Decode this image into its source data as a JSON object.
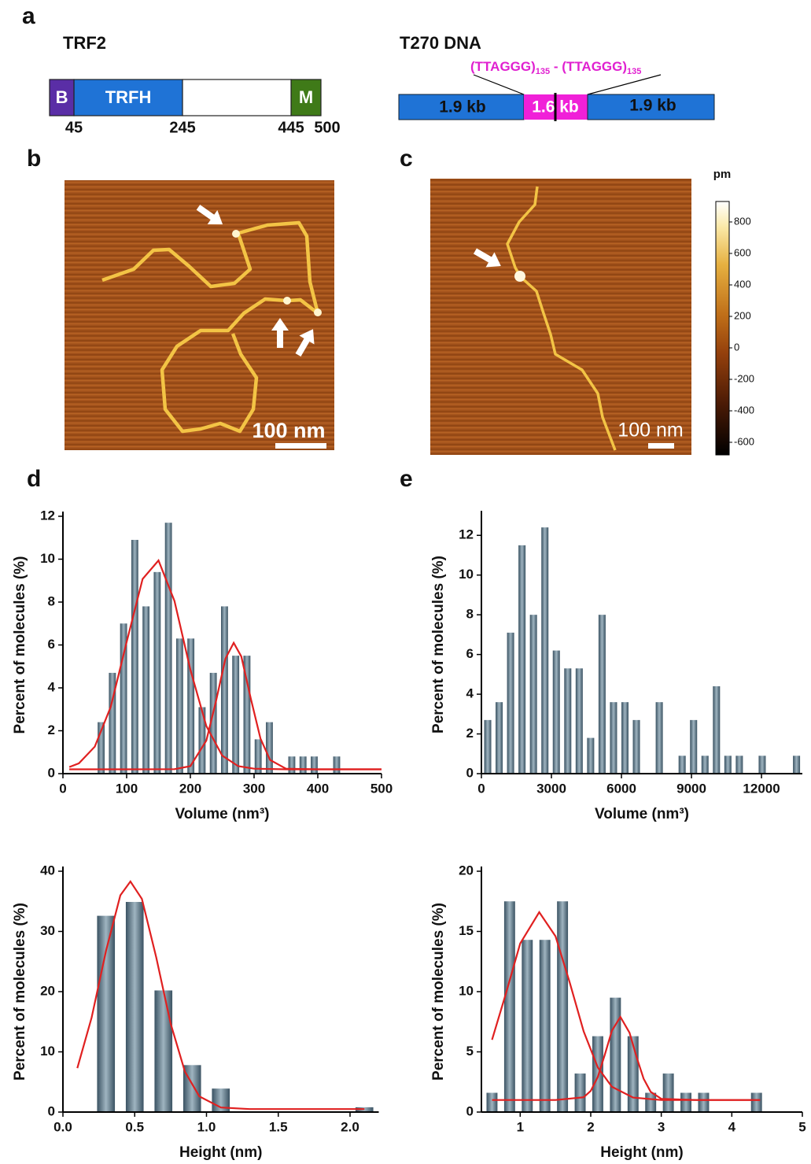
{
  "panel_labels": [
    "a",
    "b",
    "c",
    "d",
    "e"
  ],
  "trf2": {
    "title": "TRF2",
    "domains": [
      "B",
      "TRFH",
      "M"
    ],
    "positions": [
      45,
      245,
      445,
      500
    ],
    "segment_colors": [
      "#5a2ea6",
      "#1f73d6",
      "#ffffff",
      "#3f7a18"
    ]
  },
  "t270": {
    "title": "T270 DNA",
    "repeat_label": [
      "(TTAGGG)",
      "135",
      " - ",
      "(TTAGGG)",
      "135"
    ],
    "segments": [
      "1.9 kb",
      "1.6 kb",
      "1.9 kb"
    ]
  },
  "afm_images": [
    {
      "scale_bar": "100 nm"
    },
    {
      "scale_bar": "100 nm"
    }
  ],
  "colorbar": {
    "unit": "pm",
    "ylim": [
      -680,
      930
    ],
    "yticks": [
      -600,
      -400,
      -200,
      0,
      200,
      400,
      600,
      800
    ]
  },
  "chart_data": [
    {
      "type": "histogram",
      "x_label": "Volume (nm³)",
      "y_label": "Percent of molecules (%)",
      "color": "#3a5262",
      "bins": [
        51.2,
        68.8,
        86.4,
        104,
        121.6,
        139.2,
        156.8,
        174.4,
        192,
        209.6,
        227.2,
        244.8,
        262.4,
        280,
        297.6,
        315.2,
        332.8,
        350.4,
        368,
        385.6,
        403.2,
        420.8,
        438.4
      ],
      "values": [
        2.4,
        4.7,
        7.0,
        10.9,
        7.8,
        9.4,
        11.7,
        6.3,
        6.3,
        3.1,
        4.7,
        7.8,
        5.5,
        5.5,
        1.6,
        2.4,
        0,
        0.8,
        0.8,
        0.8,
        0,
        0.8
      ],
      "xlim": [
        0,
        500
      ],
      "xticks": [
        0,
        100,
        200,
        300,
        400,
        500
      ],
      "ylim": [
        0,
        12
      ],
      "yticks": [
        0,
        2,
        4,
        6,
        8,
        10,
        12
      ],
      "fit_curves": [
        {
          "color": "#e02020",
          "x": [
            10,
            25,
            50,
            75,
            100,
            125,
            150,
            175,
            200,
            225,
            250,
            275,
            300,
            350,
            400,
            450,
            500
          ],
          "values": [
            0.31,
            0.48,
            1.26,
            3.12,
            6.14,
            9.08,
            9.94,
            8.05,
            4.85,
            2.22,
            0.84,
            0.35,
            0.23,
            0.2,
            0.2,
            0.2,
            0.2
          ]
        },
        {
          "color": "#e02020",
          "x": [
            10,
            100,
            175,
            200,
            225,
            240,
            255,
            268,
            280,
            295,
            310,
            325,
            350,
            400,
            500
          ],
          "values": [
            0.2,
            0.2,
            0.21,
            0.35,
            1.54,
            3.35,
            5.36,
            6.1,
            5.46,
            3.49,
            1.64,
            0.64,
            0.23,
            0.2,
            0.2
          ]
        }
      ]
    },
    {
      "type": "histogram",
      "x_label": "Volume (nm³)",
      "y_label": "Percent of molecules (%)",
      "color": "#3a5262",
      "bins": [
        25,
        515,
        1005,
        1495,
        1985,
        2475,
        2965,
        3455,
        3945,
        4435,
        4925,
        5415,
        5905,
        6395,
        6885,
        7375,
        7865,
        8355,
        8845,
        9335,
        9825,
        10315,
        10805,
        11295,
        11785,
        12275,
        12765,
        13255,
        13745
      ],
      "values": [
        2.7,
        3.6,
        7.1,
        11.5,
        8.0,
        12.4,
        6.2,
        5.3,
        5.3,
        1.8,
        8.0,
        3.6,
        3.6,
        2.7,
        0,
        3.6,
        0,
        0.9,
        2.7,
        0.9,
        4.4,
        0.9,
        0.9,
        0,
        0.9,
        0,
        0,
        0.9
      ],
      "xlim": [
        0,
        13750
      ],
      "xticks": [
        0,
        3000,
        6000,
        9000,
        12000
      ],
      "ylim": [
        0,
        13
      ],
      "yticks": [
        0,
        2,
        4,
        6,
        8,
        10,
        12
      ],
      "fit_curves": []
    },
    {
      "type": "histogram",
      "x_label": "Height (nm)",
      "y_label": "Percent of molecules (%)",
      "color": "#3a5262",
      "bins": [
        0.2,
        0.4,
        0.6,
        0.8,
        1.0,
        1.2,
        1.4,
        1.6,
        1.8,
        2.0,
        2.2
      ],
      "values": [
        32.6,
        34.9,
        20.2,
        7.8,
        3.9,
        0,
        0,
        0,
        0,
        0.8
      ],
      "xlim": [
        0,
        2.2
      ],
      "xticks": [
        {
          "value": 0,
          "label": "0.0"
        },
        {
          "value": 0.5,
          "label": "0.5"
        },
        {
          "value": 1,
          "label": "1.0"
        },
        {
          "value": 1.5,
          "label": "1.5"
        },
        {
          "value": 2,
          "label": "2.0"
        }
      ],
      "ylim": [
        0,
        40
      ],
      "yticks": [
        0,
        10,
        20,
        30,
        40
      ],
      "fit_curves": [
        {
          "color": "#e02020",
          "x": [
            0.1,
            0.2,
            0.3,
            0.4,
            0.47,
            0.55,
            0.65,
            0.75,
            0.85,
            0.95,
            1.1,
            1.3,
            2.1
          ],
          "values": [
            7.3,
            15.7,
            26.8,
            36.0,
            38.3,
            35.4,
            25.7,
            14.7,
            6.7,
            2.6,
            0.76,
            0.5,
            0.5
          ]
        }
      ]
    },
    {
      "type": "histogram",
      "x_label": "Height (nm)",
      "y_label": "Percent of molecules (%)",
      "color": "#3a5262",
      "bins": [
        0.475,
        0.725,
        0.975,
        1.225,
        1.475,
        1.725,
        1.975,
        2.225,
        2.475,
        2.725,
        2.975,
        3.225,
        3.475,
        3.725,
        3.975,
        4.225,
        4.475
      ],
      "values": [
        1.6,
        17.5,
        14.3,
        14.3,
        17.5,
        3.2,
        6.3,
        9.5,
        6.3,
        1.6,
        3.2,
        1.6,
        1.6,
        0,
        0,
        1.6
      ],
      "xlim": [
        0.45,
        5
      ],
      "xticks": [
        1,
        2,
        3,
        4,
        5
      ],
      "ylim": [
        0,
        20
      ],
      "yticks": [
        0,
        5,
        10,
        15,
        20
      ],
      "fit_curves": [
        {
          "color": "#e02020",
          "x": [
            0.6,
            0.8,
            1.0,
            1.27,
            1.5,
            1.7,
            1.9,
            2.1,
            2.3,
            2.6,
            3.0,
            4.0,
            4.4
          ],
          "values": [
            6.0,
            9.9,
            14.0,
            16.6,
            14.6,
            10.8,
            6.7,
            3.7,
            2.1,
            1.2,
            1.0,
            1.0,
            1.0
          ]
        },
        {
          "color": "#e02020",
          "x": [
            0.6,
            1.5,
            1.9,
            2.0,
            2.1,
            2.2,
            2.3,
            2.42,
            2.55,
            2.65,
            2.75,
            2.85,
            3.0,
            3.5,
            4.4
          ],
          "values": [
            1.0,
            1.0,
            1.23,
            1.76,
            2.92,
            4.77,
            6.76,
            7.9,
            6.59,
            4.56,
            2.77,
            1.68,
            1.1,
            1.0,
            1.0
          ]
        }
      ]
    }
  ]
}
